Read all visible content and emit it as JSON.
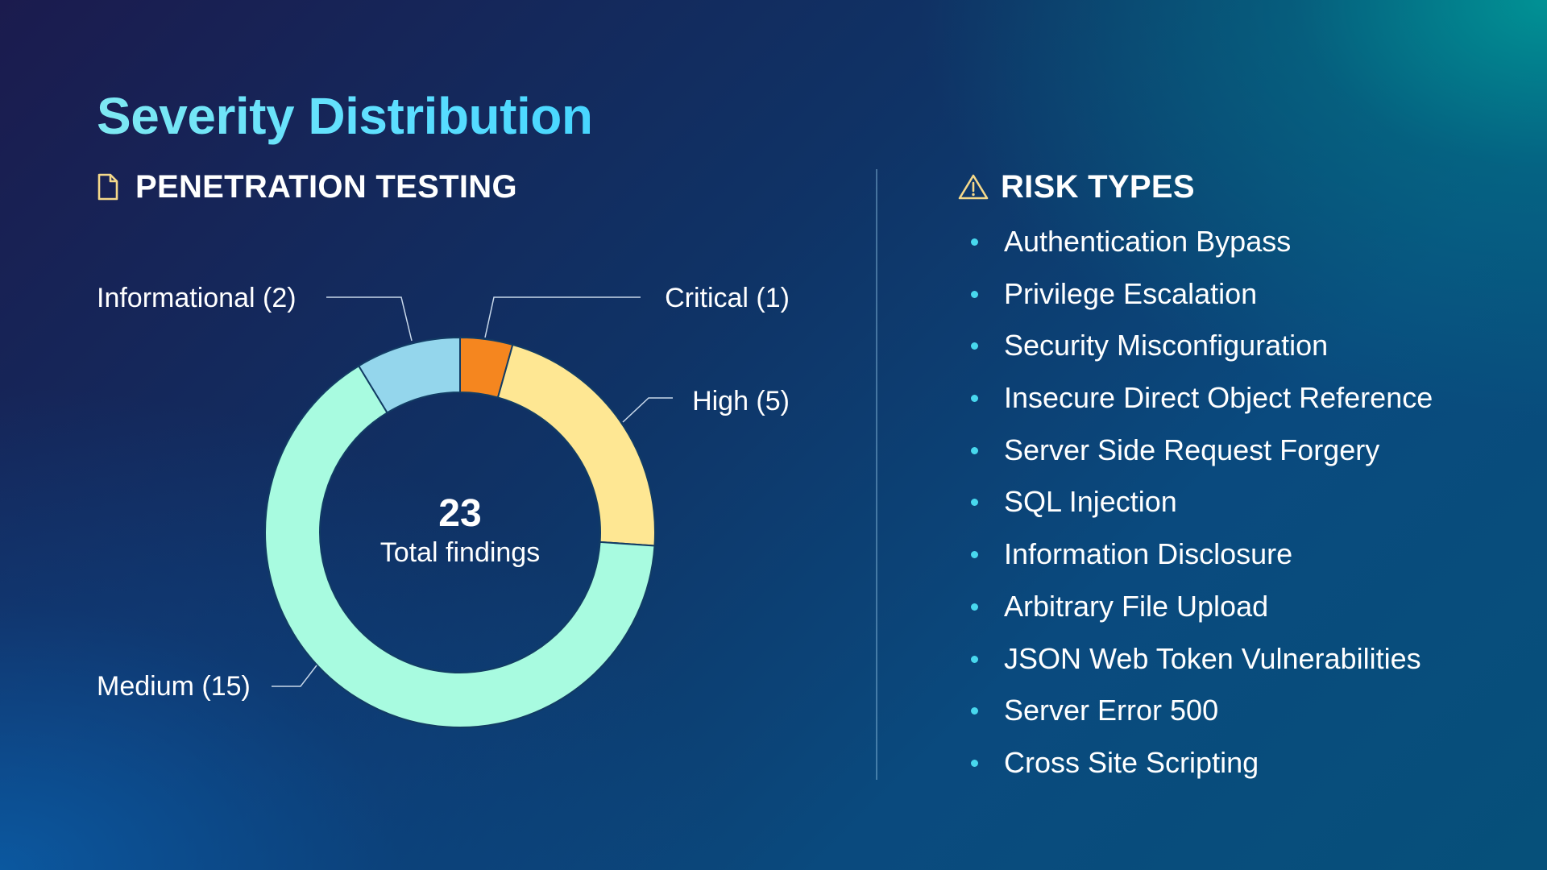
{
  "title": "Severity Distribution",
  "left_section": {
    "heading": "PENETRATION TESTING",
    "icon": "document-icon"
  },
  "right_section": {
    "heading": "RISK TYPES",
    "icon": "warning-triangle-icon",
    "items": [
      "Authentication Bypass",
      "Privilege Escalation",
      "Security Misconfiguration",
      "Insecure Direct Object Reference",
      "Server Side Request Forgery",
      "SQL Injection",
      "Information Disclosure",
      "Arbitrary File Upload",
      "JSON Web Token Vulnerabilities",
      "Server Error 500",
      "Cross Site Scripting"
    ]
  },
  "colors": {
    "title": "#5fe0ff",
    "bullet": "#48d8ee",
    "leader_line": "#c8d8ea",
    "slice_border": "#123c64"
  },
  "chart_data": {
    "type": "pie",
    "variant": "donut",
    "center": {
      "value": "23",
      "label": "Total findings"
    },
    "slices": [
      {
        "name": "Critical",
        "value": 1,
        "label": "Critical (1)",
        "color": "#f5861f"
      },
      {
        "name": "High",
        "value": 5,
        "label": "High (5)",
        "color": "#fee793"
      },
      {
        "name": "Medium",
        "value": 15,
        "label": "Medium (15)",
        "color": "#a8fbe0"
      },
      {
        "name": "Informational",
        "value": 2,
        "label": "Informational (2)",
        "color": "#94d6ec"
      }
    ],
    "start": "12 o'clock",
    "direction": "clockwise"
  }
}
